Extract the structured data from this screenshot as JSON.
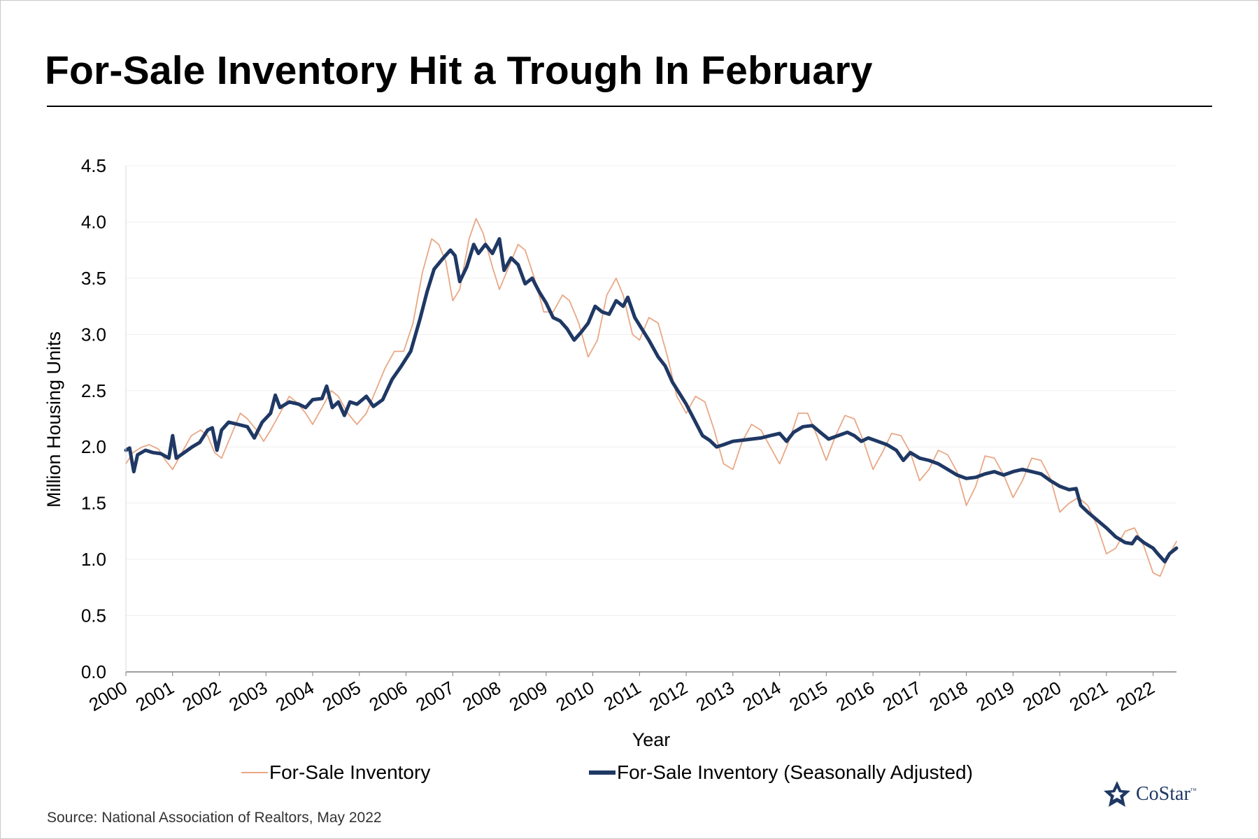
{
  "title": "For-Sale Inventory Hit a Trough In February",
  "source": "Source: National Association of Realtors, May 2022",
  "logo": {
    "text": "CoStar",
    "tm": "™"
  },
  "colors": {
    "raw": "#e8a886",
    "adjusted": "#1f3864",
    "title": "#000000"
  },
  "chart_data": {
    "type": "line",
    "title": "For-Sale Inventory Hit a Trough In February",
    "xlabel": "Year",
    "ylabel": "Million Housing Units",
    "ylim": [
      0,
      4.5
    ],
    "yticks": [
      "0.0",
      "0.5",
      "1.0",
      "1.5",
      "2.0",
      "2.5",
      "3.0",
      "3.5",
      "4.0",
      "4.5"
    ],
    "xticks": [
      "2000",
      "2001",
      "2002",
      "2003",
      "2004",
      "2005",
      "2006",
      "2007",
      "2008",
      "2009",
      "2010",
      "2011",
      "2012",
      "2013",
      "2014",
      "2015",
      "2016",
      "2017",
      "2018",
      "2019",
      "2020",
      "2021",
      "2022"
    ],
    "grid": "horizontal",
    "legend": "bottom",
    "series": [
      {
        "name": "For-Sale Inventory",
        "points": [
          [
            2000.0,
            1.85
          ],
          [
            2000.15,
            1.95
          ],
          [
            2000.35,
            2.0
          ],
          [
            2000.5,
            2.02
          ],
          [
            2000.7,
            1.98
          ],
          [
            2000.85,
            1.88
          ],
          [
            2001.0,
            1.8
          ],
          [
            2001.2,
            1.95
          ],
          [
            2001.4,
            2.1
          ],
          [
            2001.6,
            2.15
          ],
          [
            2001.75,
            2.1
          ],
          [
            2001.9,
            1.95
          ],
          [
            2002.05,
            1.9
          ],
          [
            2002.25,
            2.1
          ],
          [
            2002.45,
            2.3
          ],
          [
            2002.6,
            2.25
          ],
          [
            2002.8,
            2.15
          ],
          [
            2002.95,
            2.05
          ],
          [
            2003.1,
            2.15
          ],
          [
            2003.3,
            2.3
          ],
          [
            2003.5,
            2.45
          ],
          [
            2003.65,
            2.4
          ],
          [
            2003.85,
            2.3
          ],
          [
            2004.0,
            2.2
          ],
          [
            2004.2,
            2.35
          ],
          [
            2004.4,
            2.5
          ],
          [
            2004.55,
            2.45
          ],
          [
            2004.75,
            2.3
          ],
          [
            2004.95,
            2.2
          ],
          [
            2005.15,
            2.3
          ],
          [
            2005.35,
            2.5
          ],
          [
            2005.55,
            2.7
          ],
          [
            2005.75,
            2.85
          ],
          [
            2005.95,
            2.85
          ],
          [
            2006.15,
            3.1
          ],
          [
            2006.35,
            3.55
          ],
          [
            2006.55,
            3.85
          ],
          [
            2006.7,
            3.8
          ],
          [
            2006.85,
            3.65
          ],
          [
            2007.0,
            3.3
          ],
          [
            2007.15,
            3.4
          ],
          [
            2007.35,
            3.85
          ],
          [
            2007.5,
            4.03
          ],
          [
            2007.65,
            3.9
          ],
          [
            2007.85,
            3.6
          ],
          [
            2008.0,
            3.4
          ],
          [
            2008.2,
            3.6
          ],
          [
            2008.4,
            3.8
          ],
          [
            2008.55,
            3.75
          ],
          [
            2008.75,
            3.5
          ],
          [
            2008.95,
            3.2
          ],
          [
            2009.15,
            3.2
          ],
          [
            2009.35,
            3.35
          ],
          [
            2009.5,
            3.3
          ],
          [
            2009.7,
            3.1
          ],
          [
            2009.9,
            2.8
          ],
          [
            2010.1,
            2.95
          ],
          [
            2010.3,
            3.35
          ],
          [
            2010.5,
            3.5
          ],
          [
            2010.65,
            3.35
          ],
          [
            2010.85,
            3.0
          ],
          [
            2011.0,
            2.95
          ],
          [
            2011.2,
            3.15
          ],
          [
            2011.4,
            3.1
          ],
          [
            2011.6,
            2.8
          ],
          [
            2011.8,
            2.45
          ],
          [
            2012.0,
            2.3
          ],
          [
            2012.2,
            2.45
          ],
          [
            2012.4,
            2.4
          ],
          [
            2012.6,
            2.15
          ],
          [
            2012.8,
            1.85
          ],
          [
            2013.0,
            1.8
          ],
          [
            2013.2,
            2.05
          ],
          [
            2013.4,
            2.2
          ],
          [
            2013.6,
            2.15
          ],
          [
            2013.8,
            2.0
          ],
          [
            2014.0,
            1.85
          ],
          [
            2014.2,
            2.05
          ],
          [
            2014.4,
            2.3
          ],
          [
            2014.6,
            2.3
          ],
          [
            2014.8,
            2.1
          ],
          [
            2015.0,
            1.88
          ],
          [
            2015.2,
            2.1
          ],
          [
            2015.4,
            2.28
          ],
          [
            2015.6,
            2.25
          ],
          [
            2015.8,
            2.05
          ],
          [
            2016.0,
            1.8
          ],
          [
            2016.2,
            1.95
          ],
          [
            2016.4,
            2.12
          ],
          [
            2016.6,
            2.1
          ],
          [
            2016.8,
            1.95
          ],
          [
            2017.0,
            1.7
          ],
          [
            2017.2,
            1.8
          ],
          [
            2017.4,
            1.97
          ],
          [
            2017.6,
            1.93
          ],
          [
            2017.8,
            1.78
          ],
          [
            2018.0,
            1.48
          ],
          [
            2018.2,
            1.65
          ],
          [
            2018.4,
            1.92
          ],
          [
            2018.6,
            1.9
          ],
          [
            2018.8,
            1.75
          ],
          [
            2019.0,
            1.55
          ],
          [
            2019.2,
            1.7
          ],
          [
            2019.4,
            1.9
          ],
          [
            2019.6,
            1.88
          ],
          [
            2019.8,
            1.72
          ],
          [
            2020.0,
            1.42
          ],
          [
            2020.2,
            1.5
          ],
          [
            2020.4,
            1.55
          ],
          [
            2020.6,
            1.48
          ],
          [
            2020.8,
            1.3
          ],
          [
            2021.0,
            1.05
          ],
          [
            2021.2,
            1.1
          ],
          [
            2021.4,
            1.25
          ],
          [
            2021.6,
            1.28
          ],
          [
            2021.8,
            1.12
          ],
          [
            2022.0,
            0.88
          ],
          [
            2022.15,
            0.85
          ],
          [
            2022.35,
            1.05
          ],
          [
            2022.5,
            1.16
          ]
        ]
      },
      {
        "name": "For-Sale Inventory (Seasonally Adjusted)",
        "points": [
          [
            2000.0,
            1.97
          ],
          [
            2000.08,
            1.99
          ],
          [
            2000.17,
            1.78
          ],
          [
            2000.25,
            1.93
          ],
          [
            2000.42,
            1.97
          ],
          [
            2000.58,
            1.95
          ],
          [
            2000.75,
            1.94
          ],
          [
            2000.92,
            1.9
          ],
          [
            2001.0,
            2.1
          ],
          [
            2001.08,
            1.9
          ],
          [
            2001.25,
            1.95
          ],
          [
            2001.42,
            2.0
          ],
          [
            2001.58,
            2.04
          ],
          [
            2001.75,
            2.15
          ],
          [
            2001.85,
            2.17
          ],
          [
            2001.95,
            1.97
          ],
          [
            2002.05,
            2.15
          ],
          [
            2002.2,
            2.22
          ],
          [
            2002.4,
            2.2
          ],
          [
            2002.6,
            2.18
          ],
          [
            2002.75,
            2.08
          ],
          [
            2002.92,
            2.22
          ],
          [
            2003.1,
            2.3
          ],
          [
            2003.2,
            2.46
          ],
          [
            2003.3,
            2.35
          ],
          [
            2003.5,
            2.4
          ],
          [
            2003.7,
            2.38
          ],
          [
            2003.85,
            2.35
          ],
          [
            2004.0,
            2.42
          ],
          [
            2004.2,
            2.43
          ],
          [
            2004.3,
            2.54
          ],
          [
            2004.42,
            2.35
          ],
          [
            2004.55,
            2.4
          ],
          [
            2004.68,
            2.28
          ],
          [
            2004.8,
            2.4
          ],
          [
            2004.95,
            2.38
          ],
          [
            2005.15,
            2.45
          ],
          [
            2005.3,
            2.36
          ],
          [
            2005.5,
            2.42
          ],
          [
            2005.7,
            2.6
          ],
          [
            2005.9,
            2.72
          ],
          [
            2006.1,
            2.85
          ],
          [
            2006.3,
            3.14
          ],
          [
            2006.45,
            3.38
          ],
          [
            2006.6,
            3.58
          ],
          [
            2006.8,
            3.68
          ],
          [
            2006.95,
            3.75
          ],
          [
            2007.05,
            3.7
          ],
          [
            2007.15,
            3.47
          ],
          [
            2007.3,
            3.6
          ],
          [
            2007.45,
            3.8
          ],
          [
            2007.55,
            3.72
          ],
          [
            2007.7,
            3.8
          ],
          [
            2007.85,
            3.72
          ],
          [
            2008.0,
            3.85
          ],
          [
            2008.1,
            3.57
          ],
          [
            2008.25,
            3.68
          ],
          [
            2008.4,
            3.62
          ],
          [
            2008.55,
            3.45
          ],
          [
            2008.7,
            3.5
          ],
          [
            2008.85,
            3.38
          ],
          [
            2009.0,
            3.28
          ],
          [
            2009.15,
            3.15
          ],
          [
            2009.3,
            3.12
          ],
          [
            2009.45,
            3.05
          ],
          [
            2009.6,
            2.95
          ],
          [
            2009.75,
            3.02
          ],
          [
            2009.9,
            3.1
          ],
          [
            2010.05,
            3.25
          ],
          [
            2010.2,
            3.2
          ],
          [
            2010.35,
            3.18
          ],
          [
            2010.5,
            3.3
          ],
          [
            2010.65,
            3.25
          ],
          [
            2010.75,
            3.33
          ],
          [
            2010.9,
            3.15
          ],
          [
            2011.05,
            3.05
          ],
          [
            2011.2,
            2.95
          ],
          [
            2011.4,
            2.8
          ],
          [
            2011.55,
            2.72
          ],
          [
            2011.7,
            2.58
          ],
          [
            2011.85,
            2.48
          ],
          [
            2012.0,
            2.38
          ],
          [
            2012.2,
            2.22
          ],
          [
            2012.35,
            2.1
          ],
          [
            2012.5,
            2.06
          ],
          [
            2012.65,
            2.0
          ],
          [
            2012.8,
            2.02
          ],
          [
            2013.0,
            2.05
          ],
          [
            2013.2,
            2.06
          ],
          [
            2013.4,
            2.07
          ],
          [
            2013.6,
            2.08
          ],
          [
            2013.8,
            2.1
          ],
          [
            2014.0,
            2.12
          ],
          [
            2014.15,
            2.05
          ],
          [
            2014.3,
            2.13
          ],
          [
            2014.5,
            2.18
          ],
          [
            2014.7,
            2.19
          ],
          [
            2014.9,
            2.12
          ],
          [
            2015.05,
            2.07
          ],
          [
            2015.25,
            2.1
          ],
          [
            2015.45,
            2.13
          ],
          [
            2015.6,
            2.1
          ],
          [
            2015.75,
            2.05
          ],
          [
            2015.9,
            2.08
          ],
          [
            2016.1,
            2.05
          ],
          [
            2016.3,
            2.02
          ],
          [
            2016.5,
            1.97
          ],
          [
            2016.65,
            1.88
          ],
          [
            2016.8,
            1.95
          ],
          [
            2017.0,
            1.9
          ],
          [
            2017.2,
            1.88
          ],
          [
            2017.4,
            1.85
          ],
          [
            2017.6,
            1.8
          ],
          [
            2017.8,
            1.75
          ],
          [
            2018.0,
            1.72
          ],
          [
            2018.2,
            1.73
          ],
          [
            2018.4,
            1.76
          ],
          [
            2018.6,
            1.78
          ],
          [
            2018.8,
            1.75
          ],
          [
            2019.0,
            1.78
          ],
          [
            2019.2,
            1.8
          ],
          [
            2019.4,
            1.78
          ],
          [
            2019.6,
            1.76
          ],
          [
            2019.8,
            1.7
          ],
          [
            2020.0,
            1.65
          ],
          [
            2020.2,
            1.62
          ],
          [
            2020.35,
            1.63
          ],
          [
            2020.45,
            1.48
          ],
          [
            2020.6,
            1.42
          ],
          [
            2020.8,
            1.35
          ],
          [
            2021.0,
            1.28
          ],
          [
            2021.2,
            1.2
          ],
          [
            2021.4,
            1.15
          ],
          [
            2021.55,
            1.14
          ],
          [
            2021.65,
            1.2
          ],
          [
            2021.8,
            1.15
          ],
          [
            2022.0,
            1.1
          ],
          [
            2022.1,
            1.05
          ],
          [
            2022.25,
            0.98
          ],
          [
            2022.35,
            1.05
          ],
          [
            2022.5,
            1.1
          ]
        ]
      }
    ]
  }
}
